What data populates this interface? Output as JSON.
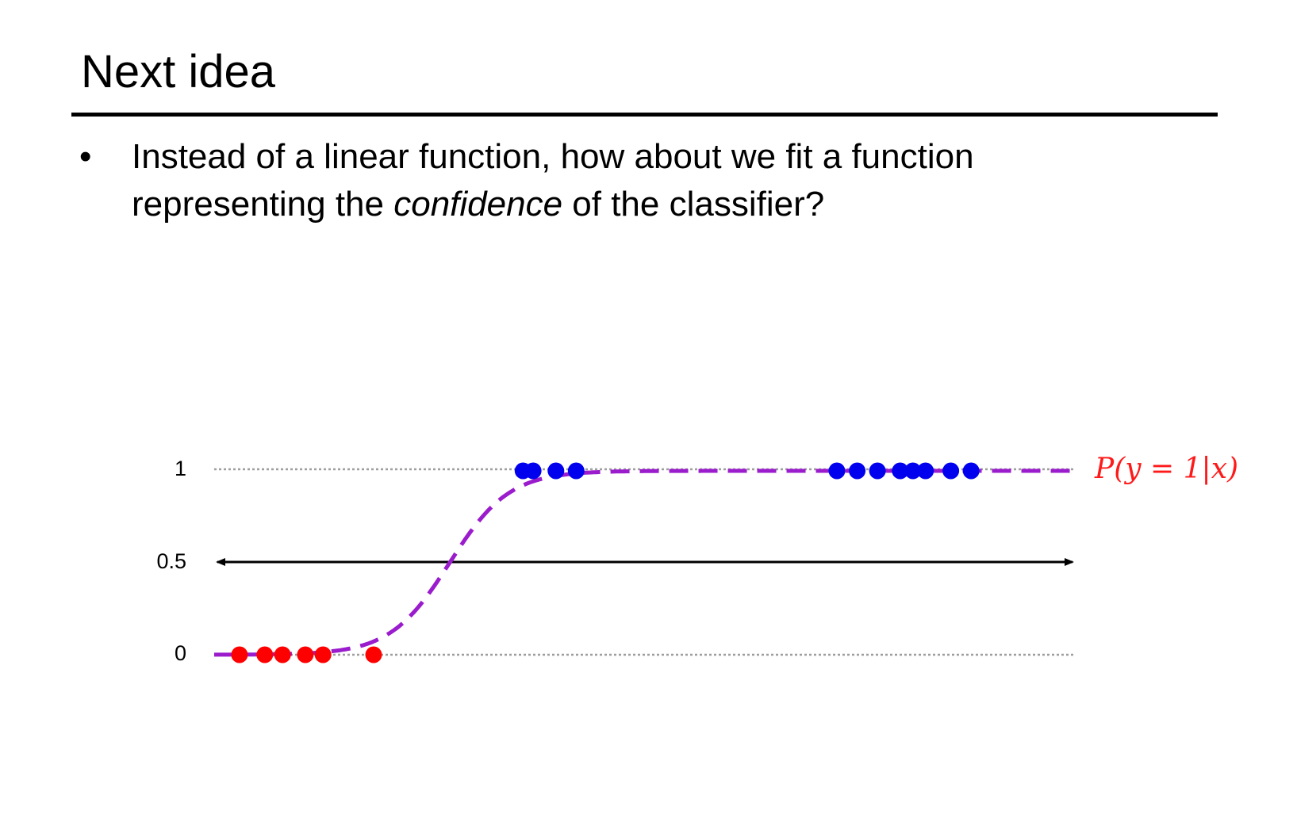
{
  "slide": {
    "title": "Next idea",
    "bullet_marker": "•",
    "bullet_line1": "Instead of a linear function, how about we fit a function",
    "bullet_line2_before": "representing the ",
    "bullet_line2_emphasis": "confidence",
    "bullet_line2_after": " of the classifier?"
  },
  "diagram": {
    "y_tick_labels": [
      "1",
      "0.5",
      "0"
    ],
    "curve_label": "P(y = 1|x)",
    "colors": {
      "class_0": "#ff0000",
      "class_1": "#0000ee",
      "curve": "#9a1ccc",
      "label": "#ff1a1a",
      "guide": "#9e9e9e",
      "axis": "#000000"
    },
    "red_points_x": [
      1.0,
      2.0,
      2.7,
      3.6,
      4.3,
      6.3
    ],
    "blue_points_x": [
      12.2,
      12.6,
      13.5,
      14.3,
      24.6,
      25.4,
      26.2,
      27.1,
      27.6,
      28.1,
      29.1,
      29.9
    ],
    "x_domain": [
      0,
      34
    ],
    "sigmoid": {
      "center": 9.3,
      "steepness": 0.85
    }
  }
}
